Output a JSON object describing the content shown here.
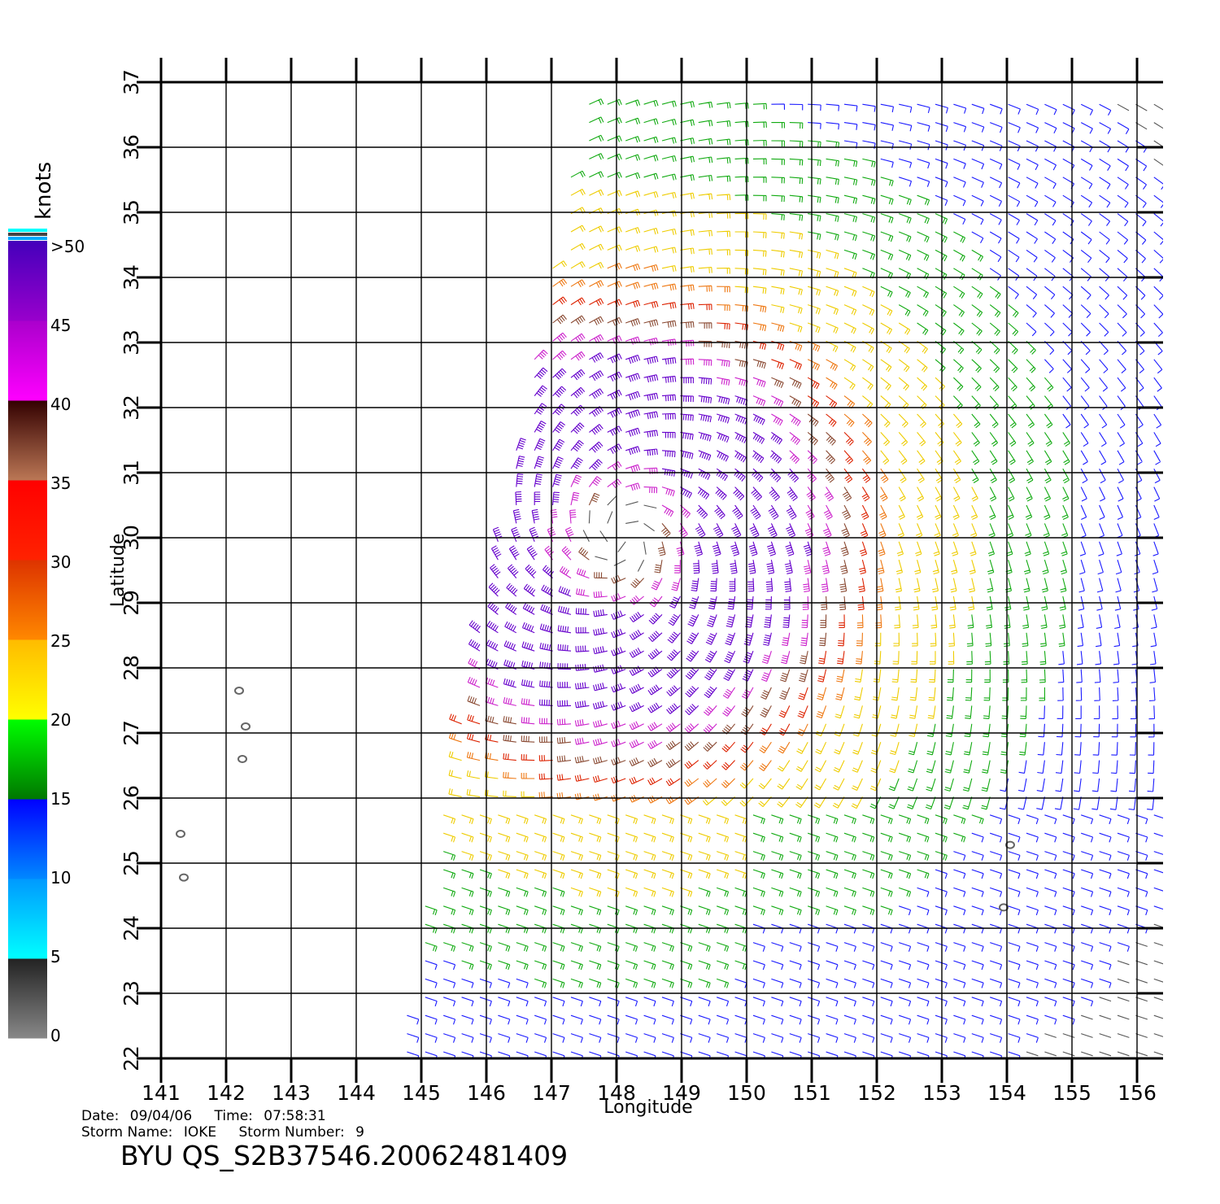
{
  "axes": {
    "x_label": "Longitude",
    "y_label": "Latitude",
    "lon_range": [
      141,
      156.4
    ],
    "lat_range": [
      22,
      37
    ],
    "lon_ticks": [
      "141",
      "142",
      "143",
      "144",
      "145",
      "146",
      "147",
      "148",
      "149",
      "150",
      "151",
      "152",
      "153",
      "154",
      "155",
      "156"
    ],
    "lat_ticks": [
      "22",
      "23",
      "24",
      "25",
      "26",
      "27",
      "28",
      "29",
      "30",
      "31",
      "32",
      "33",
      "34",
      "35",
      "36",
      "37"
    ]
  },
  "colorbar": {
    "unit": "knots",
    "labels": [
      ">50",
      "45",
      "40",
      "35",
      "30",
      "25",
      "20",
      "15",
      "10",
      "5",
      "0"
    ],
    "bands": [
      {
        "range": [
          0,
          5
        ],
        "colors": [
          "#888888",
          "#222222"
        ]
      },
      {
        "range": [
          5,
          10
        ],
        "colors": [
          "#00ffff",
          "#0099ff"
        ]
      },
      {
        "range": [
          10,
          15
        ],
        "colors": [
          "#0088ff",
          "#0000ff"
        ]
      },
      {
        "range": [
          15,
          20
        ],
        "colors": [
          "#007700",
          "#00ff00"
        ]
      },
      {
        "range": [
          20,
          25
        ],
        "colors": [
          "#ffff00",
          "#ffbb00"
        ]
      },
      {
        "range": [
          25,
          30
        ],
        "colors": [
          "#ff8800",
          "#dd3300"
        ]
      },
      {
        "range": [
          30,
          35
        ],
        "colors": [
          "#ff2200",
          "#ff0000"
        ]
      },
      {
        "range": [
          35,
          40
        ],
        "colors": [
          "#bb7755",
          "#330000"
        ]
      },
      {
        "range": [
          40,
          45
        ],
        "colors": [
          "#ff00ff",
          "#aa00cc"
        ]
      },
      {
        "range": [
          45,
          50
        ],
        "colors": [
          "#9900cc",
          "#4400bb"
        ]
      }
    ],
    "top_stripes": [
      "#00ffff",
      "#444444",
      "#00aaff"
    ]
  },
  "storm_center": {
    "lon": 148.1,
    "lat": 30.0
  },
  "islands": [
    {
      "lon": 142.2,
      "lat": 27.65
    },
    {
      "lon": 142.3,
      "lat": 27.1
    },
    {
      "lon": 142.25,
      "lat": 26.6
    },
    {
      "lon": 141.3,
      "lat": 25.45
    },
    {
      "lon": 141.35,
      "lat": 24.78
    },
    {
      "lon": 154.05,
      "lat": 25.28
    },
    {
      "lon": 153.95,
      "lat": 24.32
    }
  ],
  "info": {
    "date_label": "Date:",
    "date": "09/04/06",
    "time_label": "Time:",
    "time": "07:58:31",
    "storm_name_label": "Storm Name:",
    "storm_name": "IOKE",
    "storm_number_label": "Storm Number:",
    "storm_number": "9",
    "product": "BYU QS_S2B37546.20062481409"
  }
}
